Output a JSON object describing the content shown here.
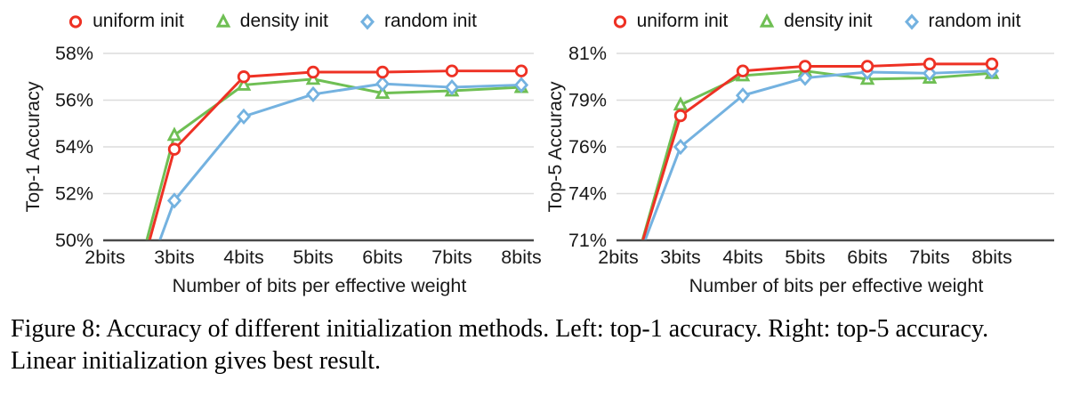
{
  "figure": {
    "caption_line1": "Figure 8: Accuracy of different initialization methods. Left: top-1 accuracy. Right: top-5 accuracy.",
    "caption_line2": "Linear initialization gives best result."
  },
  "colors": {
    "uniform_init": "#ee3124",
    "density_init": "#6fbf54",
    "random_init": "#74b2e0",
    "gridline": "#dcdcdc",
    "axis_line": "#4a4a4a",
    "label_text": "#1a1a1a"
  },
  "chart_data": [
    {
      "type": "line",
      "title": "",
      "ylabel": "Top-1 Accuracy",
      "xlabel": "Number of bits per effective weight",
      "categories": [
        "2bits",
        "3bits",
        "4bits",
        "5bits",
        "6bits",
        "7bits",
        "8bits"
      ],
      "x_values": [
        2,
        3,
        4,
        5,
        6,
        7,
        8
      ],
      "ylim": [
        50,
        58
      ],
      "yticks": [
        50,
        52,
        54,
        56,
        58
      ],
      "ytick_labels": [
        "50%",
        "52%",
        "54%",
        "56%",
        "58%"
      ],
      "grid": "horizontal",
      "legend_position": "top",
      "series": [
        {
          "name": "uniform init",
          "marker": "circle",
          "color": "#ee3124",
          "values": [
            43.0,
            53.9,
            57.0,
            57.2,
            57.2,
            57.25,
            57.25
          ]
        },
        {
          "name": "density init",
          "marker": "triangle",
          "color": "#6fbf54",
          "values": [
            43.2,
            54.5,
            56.65,
            56.9,
            56.3,
            56.4,
            56.55
          ]
        },
        {
          "name": "random init",
          "marker": "diamond",
          "color": "#74b2e0",
          "values": [
            43.6,
            51.7,
            55.3,
            56.25,
            56.7,
            56.55,
            56.65
          ]
        }
      ]
    },
    {
      "type": "line",
      "title": "",
      "ylabel": "Top-5 Accuracy",
      "xlabel": "Number of bits per effective weight",
      "categories": [
        "2bits",
        "3bits",
        "4bits",
        "5bits",
        "6bits",
        "7bits",
        "8bits"
      ],
      "x_values": [
        2,
        3,
        4,
        5,
        6,
        7,
        8
      ],
      "ylim": [
        71,
        81
      ],
      "yticks": [
        71,
        74,
        76,
        79,
        81
      ],
      "ytick_labels": [
        "71%",
        "74%",
        "76%",
        "79%",
        "81%"
      ],
      "grid": "horizontal",
      "legend_position": "top",
      "series": [
        {
          "name": "uniform init",
          "marker": "circle",
          "color": "#ee3124",
          "values": [
            65.8,
            78.0,
            80.25,
            80.45,
            80.45,
            80.55,
            80.55
          ]
        },
        {
          "name": "density init",
          "marker": "triangle",
          "color": "#6fbf54",
          "values": [
            65.5,
            78.7,
            80.05,
            80.25,
            79.9,
            79.95,
            80.15
          ]
        },
        {
          "name": "random init",
          "marker": "diamond",
          "color": "#74b2e0",
          "values": [
            66.5,
            76.0,
            79.2,
            79.95,
            80.2,
            80.15,
            80.25
          ]
        }
      ]
    }
  ]
}
